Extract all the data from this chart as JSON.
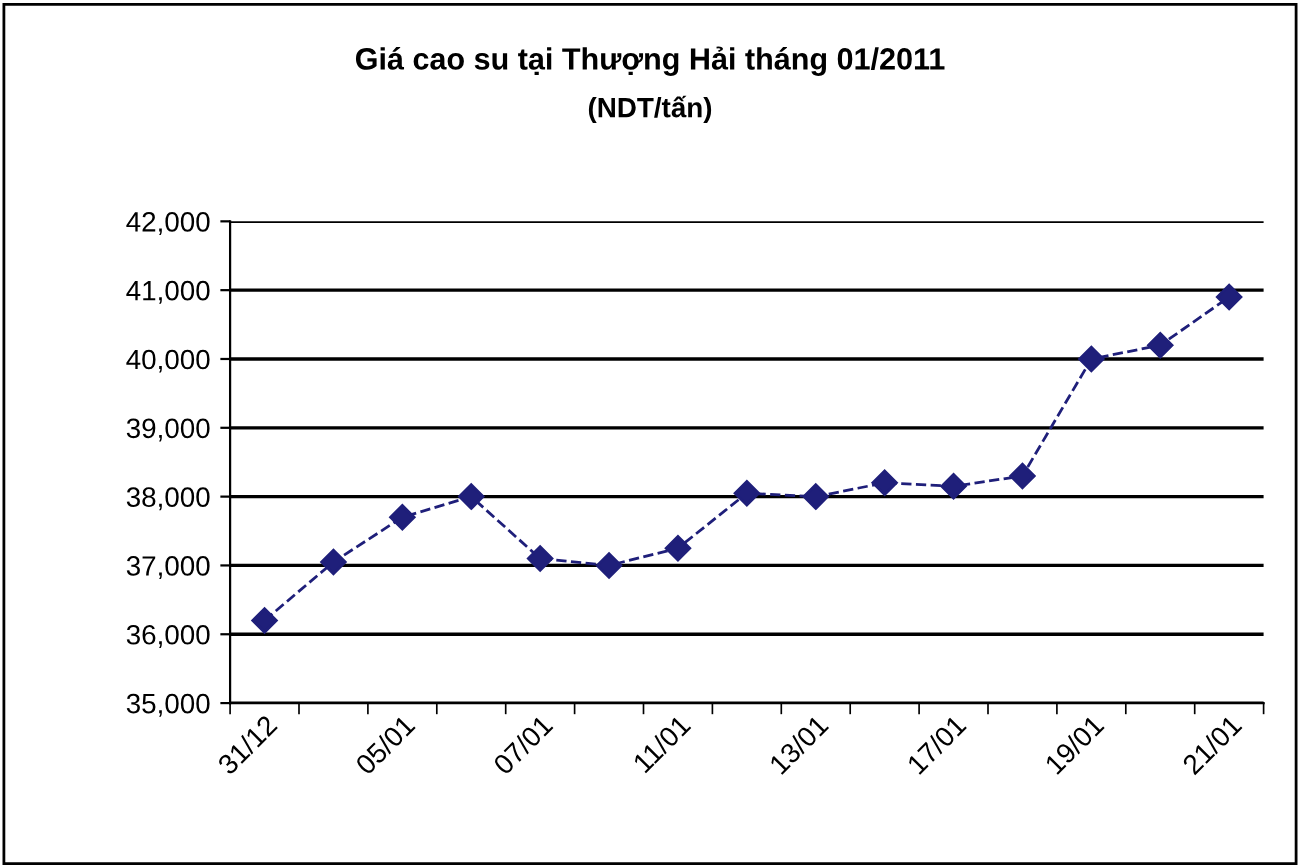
{
  "chart_data": {
    "type": "line",
    "title": "Giá cao su tại Thượng Hải tháng 01/2011",
    "subtitle": "(NDT/tấn)",
    "categories": [
      "31/12",
      null,
      "05/01",
      null,
      "07/01",
      null,
      "11/01",
      null,
      "13/01",
      null,
      "17/01",
      null,
      "19/01",
      null,
      "21/01"
    ],
    "series": [
      {
        "color": "#1f1f7a",
        "values": [
          36200,
          37050,
          37700,
          38000,
          37100,
          37000,
          37250,
          38050,
          38000,
          38200,
          38150,
          38300,
          40000,
          40200,
          40900
        ]
      }
    ],
    "ylim": [
      35000,
      42000
    ],
    "yticks": [
      {
        "value": 35000,
        "label": "35,000"
      },
      {
        "value": 36000,
        "label": "36,000"
      },
      {
        "value": 37000,
        "label": "37,000"
      },
      {
        "value": 38000,
        "label": "38,000"
      },
      {
        "value": 39000,
        "label": "39,000"
      },
      {
        "value": 40000,
        "label": "40,000"
      },
      {
        "value": 41000,
        "label": "41,000"
      },
      {
        "value": 42000,
        "label": "42,000"
      }
    ],
    "grid": "y",
    "marker": "diamond",
    "line_style": "dashed"
  }
}
